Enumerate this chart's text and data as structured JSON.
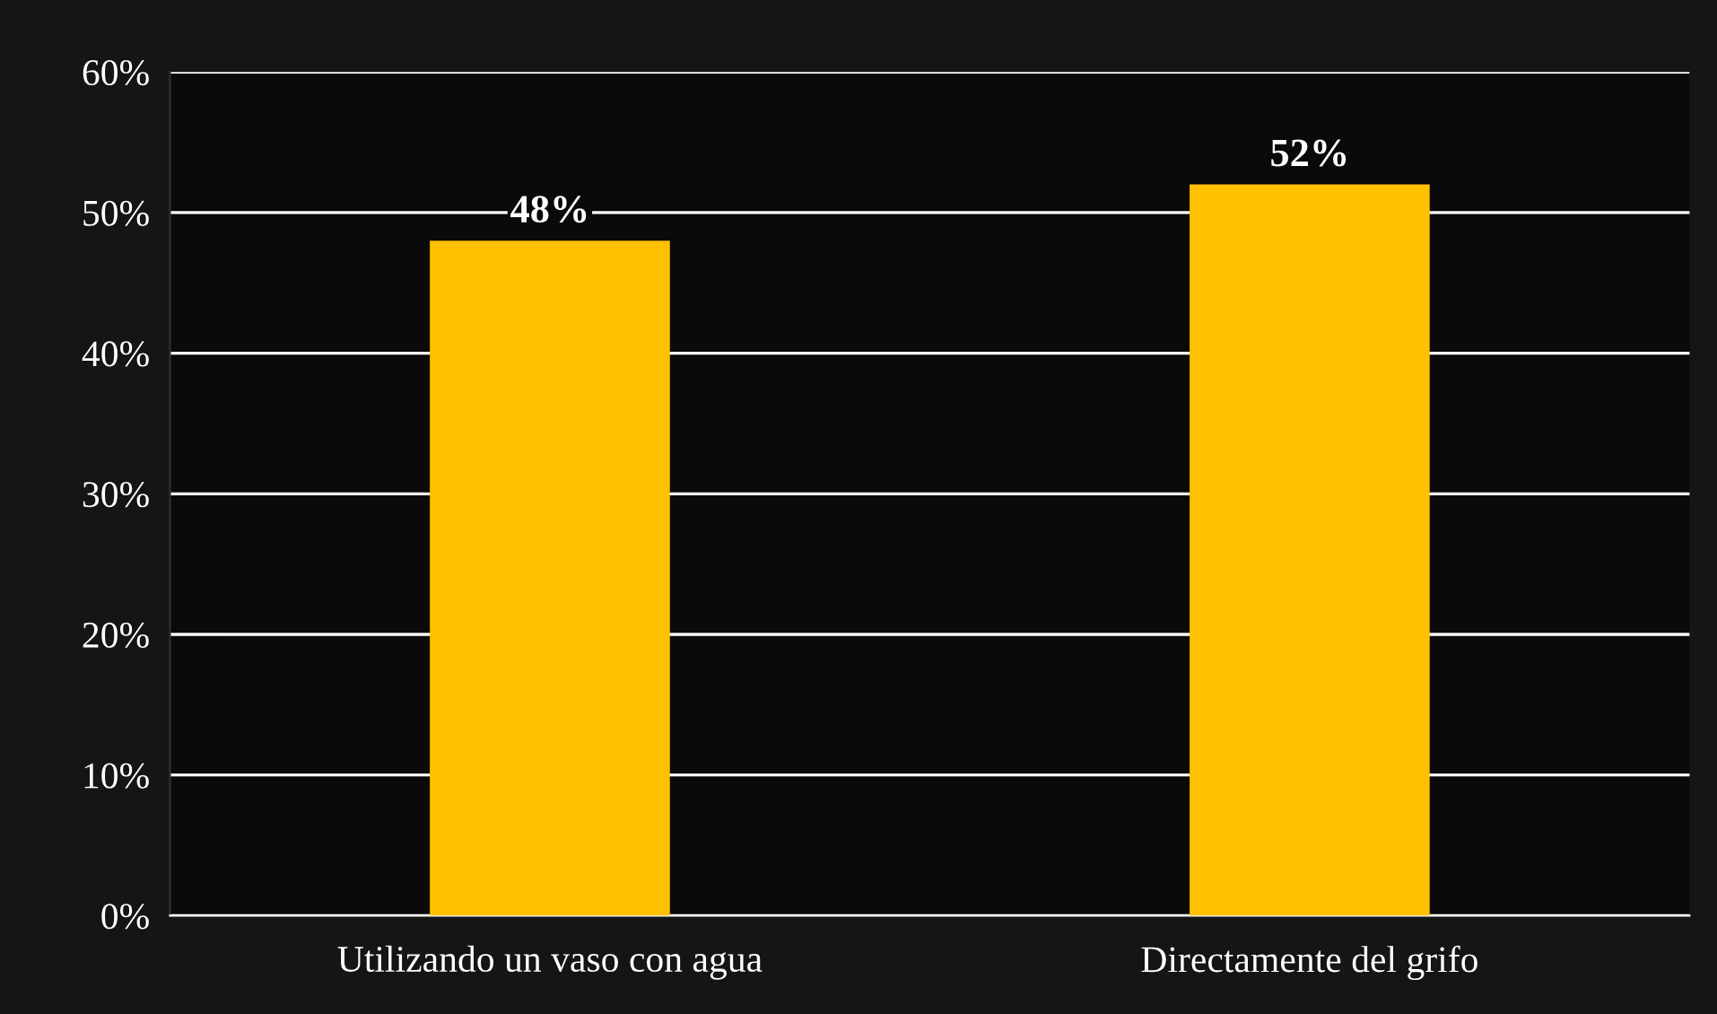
{
  "chart_data": {
    "type": "bar",
    "categories": [
      "Utilizando un vaso con agua",
      "Directamente del grifo"
    ],
    "values": [
      48,
      52
    ],
    "value_labels": [
      "48%",
      "52%"
    ],
    "color": "#ffc000",
    "ylim": [
      0,
      60
    ],
    "yticks": [
      {
        "value": 0,
        "label": "0%"
      },
      {
        "value": 10,
        "label": "10%"
      },
      {
        "value": 20,
        "label": "20%"
      },
      {
        "value": 30,
        "label": "30%"
      },
      {
        "value": 40,
        "label": "40%"
      },
      {
        "value": 50,
        "label": "50%"
      },
      {
        "value": 60,
        "label": "60%"
      }
    ],
    "grid": "y",
    "legend": false
  }
}
